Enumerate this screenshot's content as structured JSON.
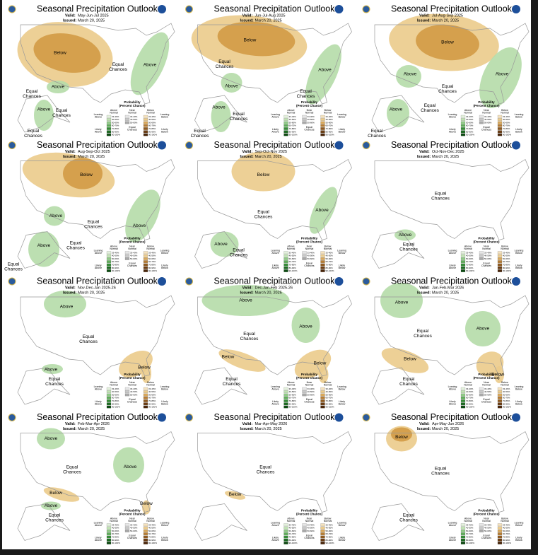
{
  "title": "Seasonal Precipitation Outlook",
  "valid_label": "Valid:",
  "issued_label": "Issued:",
  "legend": {
    "header": [
      "Probability",
      "(Percent Chance)"
    ],
    "columns": [
      [
        "Above",
        "Normal"
      ],
      [
        "Near",
        "Normal"
      ],
      [
        "Below",
        "Normal"
      ]
    ],
    "left": [
      [
        "Leaning",
        "Above"
      ],
      [
        "Likely",
        "Above"
      ]
    ],
    "center": [
      "Equal",
      "Chances"
    ],
    "right": [
      [
        "Leaning",
        "Below"
      ],
      [
        "Likely",
        "Below"
      ]
    ],
    "bins": [
      "33-40%",
      "40-50%",
      "50-60%",
      "60-70%",
      "70-80%",
      "80-90%",
      "90-100%"
    ]
  },
  "panels": [
    {
      "valid": "May-Jun-Jul 2025",
      "issued": "March 20, 2025",
      "labels": [
        [
          "Below"
        ],
        [
          "Equal",
          "Chances"
        ],
        [
          "Equal",
          "Chances"
        ],
        [
          "Above"
        ],
        [
          "Above"
        ],
        [
          "Above"
        ],
        [
          "Equal",
          "Chances"
        ],
        [
          "Equal",
          "Chances"
        ]
      ]
    },
    {
      "valid": "Jun-Jul-Aug 2025",
      "issued": "March 20, 2025",
      "labels": [
        [
          "Below"
        ],
        [
          "Equal",
          "Chances"
        ],
        [
          "Equal",
          "Chances"
        ],
        [
          "Above"
        ],
        [
          "Above"
        ],
        [
          "Above"
        ],
        [
          "Equal",
          "Chances"
        ],
        [
          "Equal",
          "Chances"
        ]
      ]
    },
    {
      "valid": "Jul-Aug-Sep 2025",
      "issued": "March 20, 2025",
      "labels": [
        [
          "Below"
        ],
        [
          "Above"
        ],
        [
          "Equal",
          "Chances"
        ],
        [
          "Above"
        ],
        [
          "Above"
        ],
        [
          "Equal",
          "Chances"
        ],
        [
          "Equal",
          "Chances"
        ]
      ]
    },
    {
      "valid": "Aug-Sep-Oct 2025",
      "issued": "March 20, 2025",
      "labels": [
        [
          "Below"
        ],
        [
          "Above"
        ],
        [
          "Equal",
          "Chances"
        ],
        [
          "Above"
        ],
        [
          "Above"
        ],
        [
          "Equal",
          "Chances"
        ],
        [
          "Equal",
          "Chances"
        ]
      ]
    },
    {
      "valid": "Sep-Oct-Nov 2025",
      "issued": "March 20, 2025",
      "labels": [
        [
          "Below"
        ],
        [
          "Equal",
          "Chances"
        ],
        [
          "Above"
        ],
        [
          "Above"
        ],
        [
          "Equal",
          "Chances"
        ]
      ]
    },
    {
      "valid": "Oct-Nov-Dec 2025",
      "issued": "March 20, 2025",
      "labels": [
        [
          "Equal",
          "Chances"
        ],
        [
          "Above"
        ],
        [
          "Equal",
          "Chances"
        ]
      ]
    },
    {
      "valid": "Nov-Dec-Jan 2025-26",
      "issued": "March 20, 2025",
      "labels": [
        [
          "Above"
        ],
        [
          "Equal",
          "Chances"
        ],
        [
          "Below"
        ],
        [
          "Above"
        ],
        [
          "Equal",
          "Chances"
        ]
      ]
    },
    {
      "valid": "Dec-Jan-Feb 2025-26",
      "issued": "March 20, 2025",
      "labels": [
        [
          "Above"
        ],
        [
          "Equal",
          "Chances"
        ],
        [
          "Below"
        ],
        [
          "Above"
        ],
        [
          "Below"
        ],
        [
          "Equal",
          "Chances"
        ]
      ]
    },
    {
      "valid": "Jan-Feb-Mar 2026",
      "issued": "March 20, 2025",
      "labels": [
        [
          "Above"
        ],
        [
          "Equal",
          "Chances"
        ],
        [
          "Above"
        ],
        [
          "Below"
        ],
        [
          "Below"
        ],
        [
          "Equal",
          "Chances"
        ]
      ]
    },
    {
      "valid": "Feb-Mar-Apr 2026",
      "issued": "March 20, 2025",
      "labels": [
        [
          "Above"
        ],
        [
          "Equal",
          "Chances"
        ],
        [
          "Above"
        ],
        [
          "Below"
        ],
        [
          "Below"
        ],
        [
          "Above"
        ],
        [
          "Equal",
          "Chances"
        ]
      ]
    },
    {
      "valid": "Mar-Apr-May 2026",
      "issued": "March 20, 2025",
      "labels": [
        [
          "Equal",
          "Chances"
        ],
        [
          "Below"
        ]
      ]
    },
    {
      "valid": "Apr-May-Jun 2026",
      "issued": "March 20, 2025",
      "labels": [
        [
          "Below"
        ],
        [
          "Equal",
          "Chances"
        ],
        [
          "Equal",
          "Chances"
        ]
      ]
    }
  ]
}
